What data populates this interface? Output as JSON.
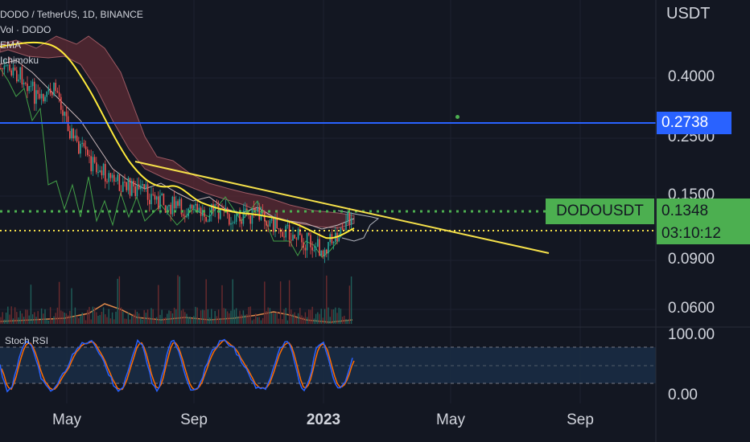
{
  "legend": {
    "symbol_line": "DODO / TetherUS, 1D, BINANCE",
    "indicators": [
      "Vol · DODO",
      "EMA",
      "Ichimoku"
    ]
  },
  "axis": {
    "currency": "USDT",
    "price_labels": [
      "0.4000",
      "0.2500",
      "0.1500",
      "0.0900",
      "0.0600"
    ],
    "stoch_labels": [
      "100.00",
      "0.00"
    ],
    "time_labels": [
      "May",
      "Sep",
      "2023",
      "May",
      "Sep"
    ]
  },
  "tags": {
    "horizontal_line_price": "0.2738",
    "symbol_tag": "DODOUSDT",
    "last_price": "0.1348",
    "countdown": "03:10:12"
  },
  "stoch": {
    "label": "Stoch RSI"
  },
  "colors": {
    "background": "#131722",
    "blue_line": "#2962ff",
    "last_price_green": "#4caf50",
    "ema_yellow": "#ffeb3b",
    "trendline_yellow": "#f5e04a",
    "stoch_k_blue": "#2962ff",
    "stoch_d_orange": "#ff6d00",
    "cloud_red": "#5d2b34",
    "candle_up": "#26a69a",
    "candle_down": "#ef5350"
  },
  "chart_data": {
    "type": "line",
    "title": "DODO / TetherUS, 1D, BINANCE",
    "y_scale": "log",
    "ylim": [
      0.045,
      0.5
    ],
    "x": [
      "2022-04",
      "2022-05",
      "2022-06",
      "2022-07",
      "2022-08",
      "2022-09",
      "2022-10",
      "2022-11",
      "2022-12",
      "2023-01",
      "2023-02"
    ],
    "series": [
      {
        "name": "EMA",
        "values": [
          0.4,
          0.35,
          0.23,
          0.16,
          0.15,
          0.15,
          0.14,
          0.125,
          0.115,
          0.12,
          0.127
        ]
      }
    ],
    "horizontal_lines": [
      {
        "value": 0.2738,
        "color": "#2962ff"
      },
      {
        "value": 0.1348,
        "color": "#4caf50",
        "style": "dotted"
      },
      {
        "value": 0.117,
        "color": "#f5e04a",
        "style": "dotted"
      }
    ],
    "trendline": {
      "from": [
        "2022-07",
        0.185
      ],
      "to": [
        "2023-09",
        0.094
      ]
    },
    "last_price": 0.1348
  }
}
